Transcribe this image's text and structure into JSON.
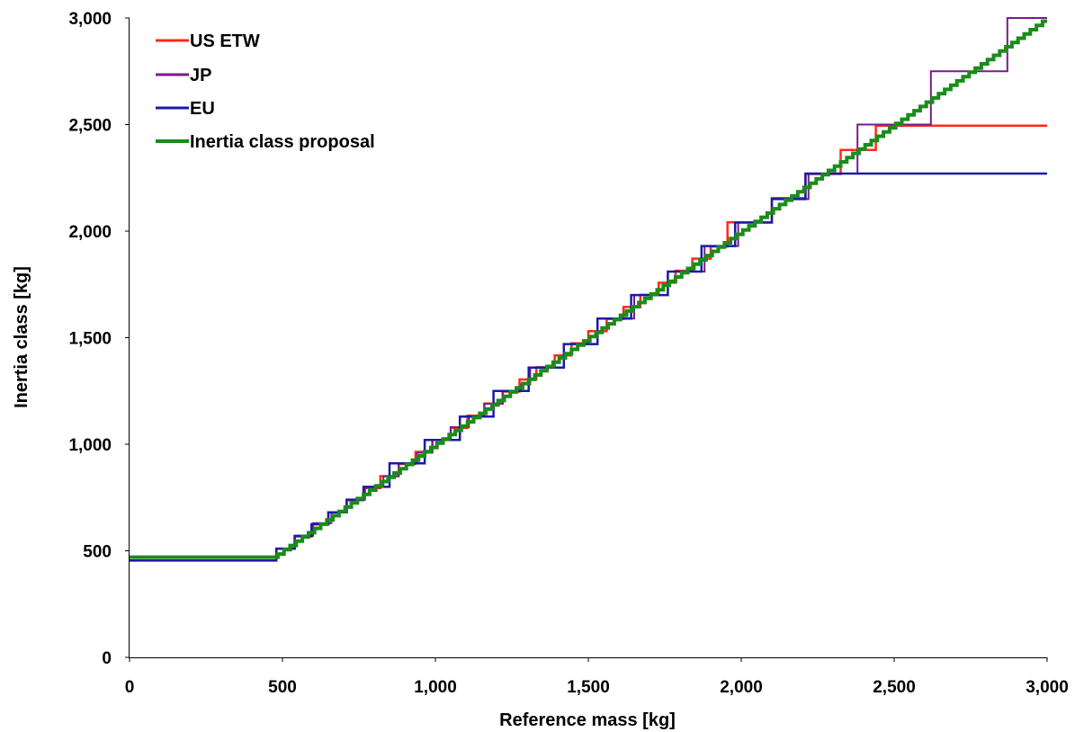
{
  "chart_data": {
    "type": "line",
    "title": "",
    "xlabel": "Reference mass [kg]",
    "ylabel": "Inertia class [kg]",
    "xlim": [
      0,
      3000
    ],
    "ylim": [
      0,
      3000
    ],
    "x_ticks": [
      0,
      500,
      1000,
      1500,
      2000,
      2500,
      3000
    ],
    "y_ticks": [
      0,
      500,
      1000,
      1500,
      2000,
      2500,
      3000
    ],
    "x_tick_labels": [
      "0",
      "500",
      "1,000",
      "1,500",
      "2,000",
      "2,500",
      "3,000"
    ],
    "y_tick_labels": [
      "0",
      "500",
      "1,000",
      "1,500",
      "2,000",
      "2,500",
      "3,000"
    ],
    "grid": false,
    "legend_position": "top-left",
    "series": [
      {
        "name": "US ETW",
        "color": "#ff2a1a",
        "steps": [
          [
            0,
            454
          ],
          [
            480,
            510
          ],
          [
            540,
            567
          ],
          [
            595,
            624
          ],
          [
            650,
            680
          ],
          [
            710,
            737
          ],
          [
            765,
            794
          ],
          [
            820,
            850
          ],
          [
            880,
            907
          ],
          [
            935,
            964
          ],
          [
            990,
            1020
          ],
          [
            1050,
            1077
          ],
          [
            1105,
            1134
          ],
          [
            1160,
            1191
          ],
          [
            1220,
            1247
          ],
          [
            1275,
            1304
          ],
          [
            1330,
            1361
          ],
          [
            1390,
            1417
          ],
          [
            1445,
            1474
          ],
          [
            1500,
            1531
          ],
          [
            1560,
            1588
          ],
          [
            1615,
            1644
          ],
          [
            1670,
            1701
          ],
          [
            1730,
            1758
          ],
          [
            1785,
            1814
          ],
          [
            1840,
            1871
          ],
          [
            1900,
            1928
          ],
          [
            1955,
            2041
          ],
          [
            2100,
            2155
          ],
          [
            2210,
            2268
          ],
          [
            2325,
            2381
          ],
          [
            2440,
            2495
          ]
        ],
        "x_end": 3000
      },
      {
        "name": "JP",
        "color": "#7a1a8c",
        "steps": [
          [
            0,
            454
          ],
          [
            480,
            510
          ],
          [
            540,
            570
          ],
          [
            600,
            630
          ],
          [
            660,
            680
          ],
          [
            710,
            740
          ],
          [
            770,
            800
          ],
          [
            830,
            850
          ],
          [
            880,
            910
          ],
          [
            940,
            960
          ],
          [
            990,
            1020
          ],
          [
            1050,
            1080
          ],
          [
            1110,
            1130
          ],
          [
            1160,
            1190
          ],
          [
            1220,
            1250
          ],
          [
            1280,
            1280
          ],
          [
            1310,
            1360
          ],
          [
            1420,
            1470
          ],
          [
            1530,
            1590
          ],
          [
            1650,
            1700
          ],
          [
            1760,
            1810
          ],
          [
            1880,
            1930
          ],
          [
            1990,
            2040
          ],
          [
            2100,
            2150
          ],
          [
            2220,
            2270
          ],
          [
            2380,
            2500
          ],
          [
            2620,
            2750
          ],
          [
            2870,
            3000
          ]
        ],
        "x_end": 3000
      },
      {
        "name": "EU",
        "color": "#1a1aa8",
        "steps": [
          [
            0,
            455
          ],
          [
            480,
            510
          ],
          [
            540,
            570
          ],
          [
            595,
            625
          ],
          [
            650,
            680
          ],
          [
            710,
            740
          ],
          [
            765,
            800
          ],
          [
            850,
            910
          ],
          [
            965,
            1020
          ],
          [
            1080,
            1130
          ],
          [
            1190,
            1250
          ],
          [
            1305,
            1360
          ],
          [
            1420,
            1470
          ],
          [
            1530,
            1590
          ],
          [
            1640,
            1700
          ],
          [
            1760,
            1810
          ],
          [
            1870,
            1930
          ],
          [
            1980,
            2040
          ],
          [
            2100,
            2150
          ],
          [
            2210,
            2270
          ]
        ],
        "x_end": 3000
      },
      {
        "name": "Inertia class proposal",
        "color": "#1a8c1a",
        "flat_value": 470,
        "flat_range": [
          0,
          485
        ],
        "step_start": 485,
        "step_end": 3000,
        "step_width": 20,
        "step_offset": 500
      }
    ]
  }
}
